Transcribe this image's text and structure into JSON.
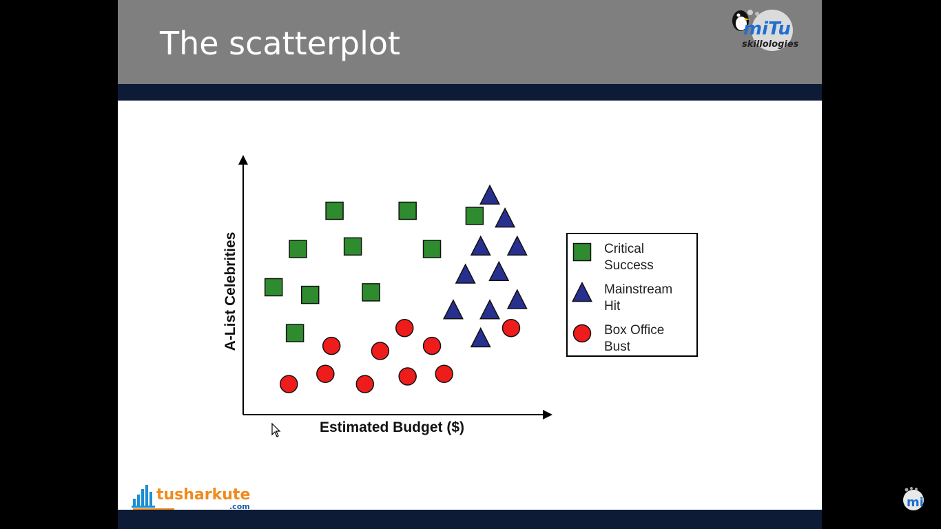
{
  "slide": {
    "title": "The scatterplot",
    "colors": {
      "title_bar": "#7f7f7f",
      "band": "#0e1b36",
      "background": "#ffffff"
    }
  },
  "logos": {
    "top_right": {
      "word1": "miTu",
      "word2": "skillologies",
      "icon": "penguin-icon"
    },
    "bottom_left": {
      "brand": "tusharkute",
      "suffix": ".com",
      "icon": "bar-graph-icon"
    },
    "corner_badge": {
      "text": "mi"
    }
  },
  "chart_data": {
    "type": "scatter",
    "title": "",
    "xlabel": "Estimated Budget ($)",
    "ylabel": "A-List Celebrities",
    "xlim": [
      0,
      10
    ],
    "ylim": [
      0,
      10
    ],
    "axis_ticks": false,
    "grid": false,
    "legend_position": "right",
    "series": [
      {
        "name": "Critical Success",
        "marker": "square",
        "color": "#2e8b2e",
        "points": [
          [
            1.0,
            5.0
          ],
          [
            1.8,
            6.5
          ],
          [
            2.2,
            4.7
          ],
          [
            3.0,
            8.0
          ],
          [
            3.6,
            6.6
          ],
          [
            4.2,
            4.8
          ],
          [
            5.4,
            8.0
          ],
          [
            6.2,
            6.5
          ],
          [
            7.6,
            7.8
          ],
          [
            1.7,
            3.2
          ]
        ]
      },
      {
        "name": "Mainstream Hit",
        "marker": "triangle",
        "color": "#27308f",
        "points": [
          [
            8.1,
            8.6
          ],
          [
            8.6,
            7.7
          ],
          [
            7.8,
            6.6
          ],
          [
            9.0,
            6.6
          ],
          [
            7.3,
            5.5
          ],
          [
            8.4,
            5.6
          ],
          [
            6.9,
            4.1
          ],
          [
            8.1,
            4.1
          ],
          [
            9.0,
            4.5
          ],
          [
            7.8,
            3.0
          ]
        ]
      },
      {
        "name": "Box Office Bust",
        "marker": "circle",
        "color": "#ef1c1c",
        "points": [
          [
            1.5,
            1.2
          ],
          [
            2.7,
            1.6
          ],
          [
            2.9,
            2.7
          ],
          [
            4.0,
            1.2
          ],
          [
            4.5,
            2.5
          ],
          [
            5.3,
            3.4
          ],
          [
            5.4,
            1.5
          ],
          [
            6.2,
            2.7
          ],
          [
            6.6,
            1.6
          ],
          [
            8.8,
            3.4
          ]
        ]
      }
    ]
  }
}
